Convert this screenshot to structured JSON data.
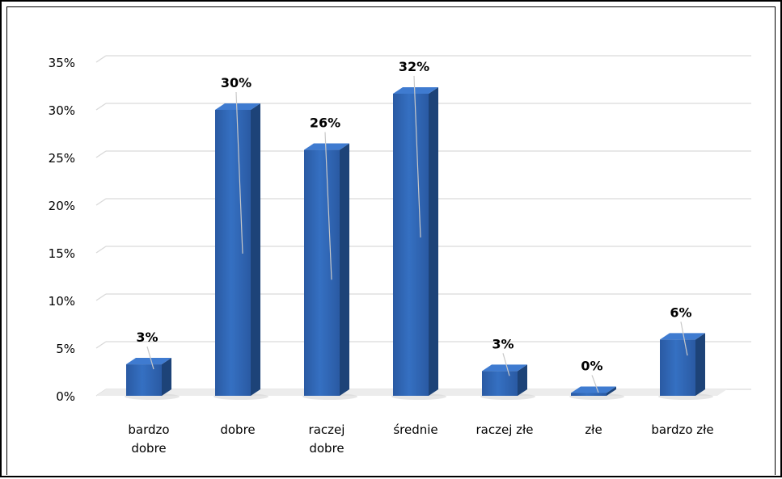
{
  "chart_data": {
    "type": "bar",
    "title": "",
    "xlabel": "",
    "ylabel": "",
    "categories": [
      [
        "bardzo",
        "dobre"
      ],
      [
        "dobre"
      ],
      [
        "raczej",
        "dobre"
      ],
      [
        "średnie"
      ],
      [
        "raczej złe"
      ],
      [
        "złe"
      ],
      [
        "bardzo złe"
      ]
    ],
    "values": [
      3,
      30,
      26,
      32,
      3,
      0,
      6
    ],
    "display_values": [
      3.3,
      30,
      25.8,
      31.7,
      2.6,
      0.3,
      5.9
    ],
    "data_labels": [
      "3%",
      "30%",
      "26%",
      "32%",
      "3%",
      "0%",
      "6%"
    ],
    "y_ticks": [
      "0%",
      "5%",
      "10%",
      "15%",
      "20%",
      "25%",
      "30%",
      "35%"
    ],
    "ylim": [
      0,
      35
    ],
    "grid": true,
    "legend": "none",
    "style_3d": true,
    "colors": {
      "bar_front": "#2e62b0",
      "bar_side": "#1d4378",
      "bar_top": "#3f7bd0",
      "grid": "#d9d9d9",
      "text": "#000000"
    }
  }
}
